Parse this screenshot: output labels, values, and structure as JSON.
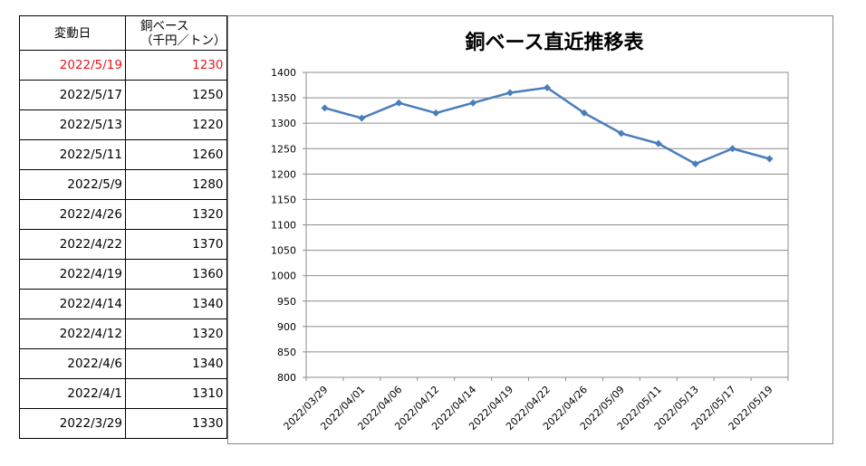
{
  "table": {
    "header": {
      "date": "変動日",
      "price_line1": "銅ベース",
      "price_line2": "（千円／トン）"
    },
    "rows": [
      {
        "date": "2022/5/19",
        "price": "1230",
        "highlight": true
      },
      {
        "date": "2022/5/17",
        "price": "1250"
      },
      {
        "date": "2022/5/13",
        "price": "1220"
      },
      {
        "date": "2022/5/11",
        "price": "1260"
      },
      {
        "date": "2022/5/9",
        "price": "1280"
      },
      {
        "date": "2022/4/26",
        "price": "1320"
      },
      {
        "date": "2022/4/22",
        "price": "1370"
      },
      {
        "date": "2022/4/19",
        "price": "1360"
      },
      {
        "date": "2022/4/14",
        "price": "1340"
      },
      {
        "date": "2022/4/12",
        "price": "1320"
      },
      {
        "date": "2022/4/6",
        "price": "1340"
      },
      {
        "date": "2022/4/1",
        "price": "1310"
      },
      {
        "date": "2022/3/29",
        "price": "1330"
      }
    ],
    "highlight_color": "#e8151b"
  },
  "chart_data": {
    "type": "line",
    "title": "銅ベース直近推移表",
    "xlabel": "",
    "ylabel": "",
    "categories": [
      "2022/03/29",
      "2022/04/01",
      "2022/04/06",
      "2022/04/12",
      "2022/04/14",
      "2022/04/19",
      "2022/04/22",
      "2022/04/26",
      "2022/05/09",
      "2022/05/11",
      "2022/05/13",
      "2022/05/17",
      "2022/05/19"
    ],
    "series": [
      {
        "values": [
          1330,
          1310,
          1340,
          1320,
          1340,
          1360,
          1370,
          1320,
          1280,
          1260,
          1220,
          1250,
          1230
        ],
        "color": "#4a7ebb",
        "marker": "diamond"
      }
    ],
    "ylim": [
      800,
      1400
    ],
    "yticks": [
      800,
      850,
      900,
      950,
      1000,
      1050,
      1100,
      1150,
      1200,
      1250,
      1300,
      1350,
      1400
    ],
    "grid": "horizontal",
    "legend": "none"
  }
}
